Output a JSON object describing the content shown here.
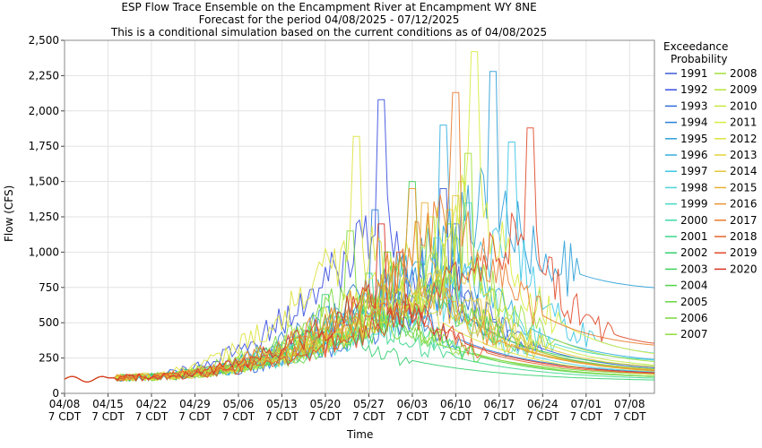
{
  "chart_data": {
    "type": "line",
    "title": "ESP Flow Trace Ensemble on the Encampment River at Encampment WY 8NE",
    "subtitle_1": "Forecast for the period 04/08/2025 - 07/12/2025",
    "subtitle_2": "This is a conditional simulation based on the current conditions as of 04/08/2025",
    "xlabel": "Time",
    "ylabel": "Flow (CFS)",
    "ylim": [
      0,
      2500
    ],
    "y_ticks": [
      "0",
      "250",
      "500",
      "750",
      "1,000",
      "1,250",
      "1,500",
      "1,750",
      "2,000",
      "2,250",
      "2,500"
    ],
    "x_ticks": [
      {
        "date": "04/08",
        "zone": "7 CDT"
      },
      {
        "date": "04/15",
        "zone": "7 CDT"
      },
      {
        "date": "04/22",
        "zone": "7 CDT"
      },
      {
        "date": "04/29",
        "zone": "7 CDT"
      },
      {
        "date": "05/06",
        "zone": "7 CDT"
      },
      {
        "date": "05/13",
        "zone": "7 CDT"
      },
      {
        "date": "05/20",
        "zone": "7 CDT"
      },
      {
        "date": "05/27",
        "zone": "7 CDT"
      },
      {
        "date": "06/03",
        "zone": "7 CDT"
      },
      {
        "date": "06/10",
        "zone": "7 CDT"
      },
      {
        "date": "06/17",
        "zone": "7 CDT"
      },
      {
        "date": "06/24",
        "zone": "7 CDT"
      },
      {
        "date": "07/01",
        "zone": "7 CDT"
      },
      {
        "date": "07/08",
        "zone": "7 CDT"
      }
    ],
    "x_range": [
      "04/08/2025",
      "07/12/2025"
    ],
    "grid": true,
    "legend_title_1": "Exceedance",
    "legend_title_2": "Probability",
    "legend_placement": "right",
    "series": [
      {
        "name": "1991",
        "color": "#3b5bd6",
        "peak_date": "06/08",
        "peak": 1450,
        "end_flow": 150
      },
      {
        "name": "1992",
        "color": "#3a4fe0",
        "peak_date": "05/29",
        "peak": 2080,
        "end_flow": 110
      },
      {
        "name": "1993",
        "color": "#2f6bdc",
        "peak_date": "06/10",
        "peak": 1200,
        "end_flow": 140
      },
      {
        "name": "1994",
        "color": "#2b7fd8",
        "peak_date": "05/28",
        "peak": 1300,
        "end_flow": 120
      },
      {
        "name": "1995",
        "color": "#2ea0d8",
        "peak_date": "06/16",
        "peak": 2280,
        "end_flow": 720
      },
      {
        "name": "1996",
        "color": "#33aee0",
        "peak_date": "06/08",
        "peak": 1900,
        "end_flow": 200
      },
      {
        "name": "1997",
        "color": "#3cc6e4",
        "peak_date": "06/19",
        "peak": 1780,
        "end_flow": 250
      },
      {
        "name": "1998",
        "color": "#4fd3d8",
        "peak_date": "06/07",
        "peak": 1100,
        "end_flow": 130
      },
      {
        "name": "1999",
        "color": "#45d8c4",
        "peak_date": "06/12",
        "peak": 1350,
        "end_flow": 210
      },
      {
        "name": "2000",
        "color": "#3fd8a8",
        "peak_date": "05/30",
        "peak": 1000,
        "end_flow": 100
      },
      {
        "name": "2001",
        "color": "#3ad68c",
        "peak_date": "05/27",
        "peak": 850,
        "end_flow": 90
      },
      {
        "name": "2002",
        "color": "#34d070",
        "peak_date": "05/20",
        "peak": 700,
        "end_flow": 80
      },
      {
        "name": "2003",
        "color": "#3fd25a",
        "peak_date": "06/03",
        "peak": 1500,
        "end_flow": 160
      },
      {
        "name": "2004",
        "color": "#52d44a",
        "peak_date": "05/31",
        "peak": 900,
        "end_flow": 100
      },
      {
        "name": "2005",
        "color": "#66d640",
        "peak_date": "06/09",
        "peak": 1200,
        "end_flow": 150
      },
      {
        "name": "2006",
        "color": "#7ad83c",
        "peak_date": "05/24",
        "peak": 1150,
        "end_flow": 110
      },
      {
        "name": "2007",
        "color": "#8edc3a",
        "peak_date": "05/30",
        "peak": 1000,
        "end_flow": 100
      },
      {
        "name": "2008",
        "color": "#a2e03a",
        "peak_date": "06/12",
        "peak": 1700,
        "end_flow": 190
      },
      {
        "name": "2009",
        "color": "#b4e43c",
        "peak_date": "06/06",
        "peak": 1250,
        "end_flow": 140
      },
      {
        "name": "2010",
        "color": "#c6e83e",
        "peak_date": "06/11",
        "peak": 1500,
        "end_flow": 170
      },
      {
        "name": "2011",
        "color": "#d8ec40",
        "peak_date": "06/13",
        "peak": 2420,
        "end_flow": 230
      },
      {
        "name": "2012",
        "color": "#dde23e",
        "peak_date": "05/25",
        "peak": 1820,
        "end_flow": 90
      },
      {
        "name": "2013",
        "color": "#e2d43c",
        "peak_date": "06/09",
        "peak": 1300,
        "end_flow": 130
      },
      {
        "name": "2014",
        "color": "#e6c63a",
        "peak_date": "06/10",
        "peak": 1400,
        "end_flow": 160
      },
      {
        "name": "2015",
        "color": "#e8b036",
        "peak_date": "06/05",
        "peak": 1350,
        "end_flow": 140
      },
      {
        "name": "2016",
        "color": "#ea9632",
        "peak_date": "06/03",
        "peak": 1450,
        "end_flow": 130
      },
      {
        "name": "2017",
        "color": "#ea7c30",
        "peak_date": "06/10",
        "peak": 2130,
        "end_flow": 300
      },
      {
        "name": "2018",
        "color": "#e6622e",
        "peak_date": "06/01",
        "peak": 1000,
        "end_flow": 120
      },
      {
        "name": "2019",
        "color": "#e04a2a",
        "peak_date": "06/22",
        "peak": 1880,
        "end_flow": 320
      },
      {
        "name": "2020",
        "color": "#d83226",
        "peak_date": "05/29",
        "peak": 1200,
        "end_flow": 120
      }
    ]
  }
}
